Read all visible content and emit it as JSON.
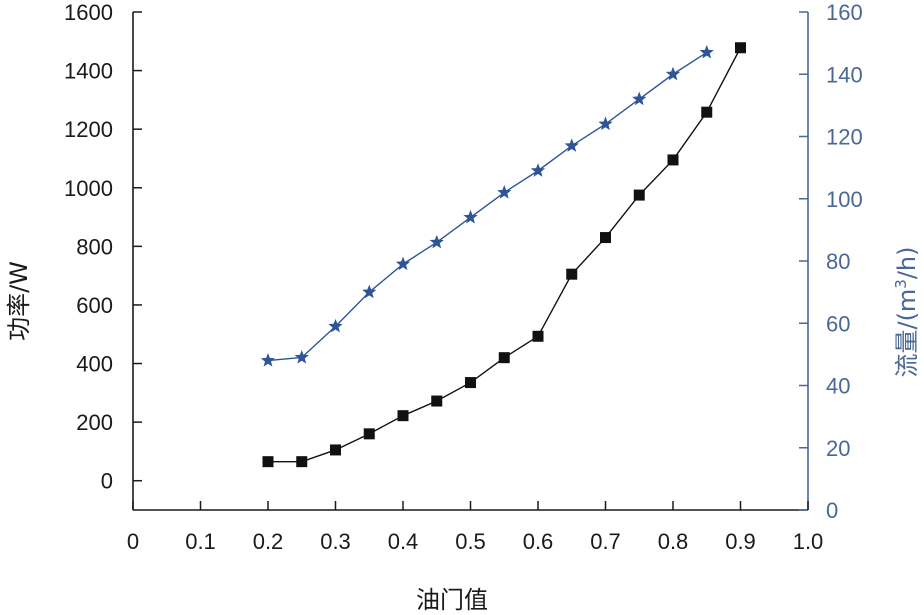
{
  "chart_data": {
    "type": "line",
    "xlabel": "油门值",
    "ylabel_left": "功率/W",
    "ylabel_right_prefix": "流量/(m",
    "ylabel_right_sup": "3",
    "ylabel_right_suffix": "/h)",
    "xlim": [
      0,
      1.0
    ],
    "ylim_left": [
      -100,
      1600
    ],
    "ylim_right": [
      0,
      160
    ],
    "x_ticks": [
      "0",
      "0.1",
      "0.2",
      "0.3",
      "0.4",
      "0.5",
      "0.6",
      "0.7",
      "0.8",
      "0.9",
      "1.0"
    ],
    "y_left_ticks": [
      "0",
      "200",
      "400",
      "600",
      "800",
      "1000",
      "1200",
      "1400",
      "1600"
    ],
    "y_right_ticks": [
      "0",
      "20",
      "40",
      "60",
      "80",
      "100",
      "120",
      "140",
      "160"
    ],
    "grid": false,
    "series": [
      {
        "axis": "left",
        "marker": "square",
        "color": "#111111",
        "x": [
          0.2,
          0.25,
          0.3,
          0.35,
          0.4,
          0.45,
          0.5,
          0.55,
          0.6,
          0.65,
          0.7,
          0.75,
          0.8,
          0.85,
          0.9
        ],
        "values": [
          65,
          65,
          105,
          160,
          222,
          272,
          335,
          420,
          493,
          705,
          830,
          975,
          1095,
          1258,
          1478
        ]
      },
      {
        "axis": "right",
        "marker": "star",
        "color": "#2f5597",
        "x": [
          0.2,
          0.25,
          0.3,
          0.35,
          0.4,
          0.45,
          0.5,
          0.55,
          0.6,
          0.65,
          0.7,
          0.75,
          0.8,
          0.85
        ],
        "values": [
          48,
          49,
          59,
          70,
          79,
          86,
          94,
          102,
          109,
          117,
          124,
          132,
          140,
          147
        ]
      }
    ]
  }
}
